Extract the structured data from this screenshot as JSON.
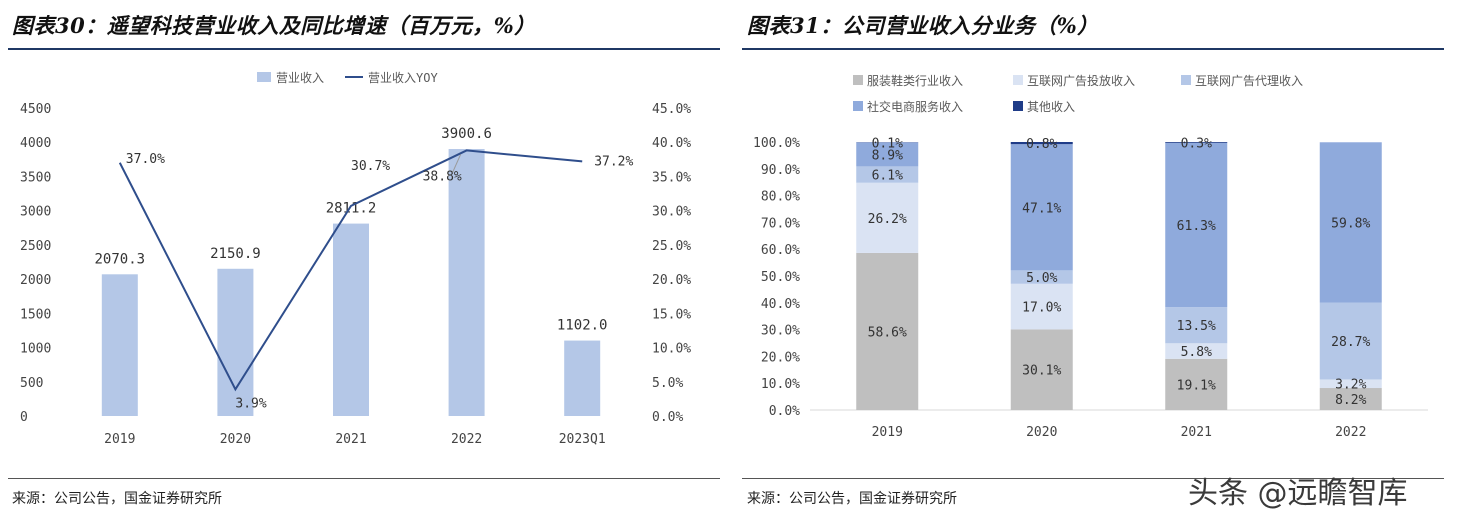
{
  "left": {
    "title": "图表30：遥望科技营业收入及同比增速（百万元，%）",
    "source": "来源：公司公告，国金证券研究所"
  },
  "right": {
    "title": "图表31：公司营业收入分业务（%）",
    "source": "来源：公司公告，国金证券研究所"
  },
  "watermark": "头条 @远瞻智库",
  "colors": {
    "bar": "#b4c7e7",
    "line": "#2f4e8c",
    "seg_apparel": "#bfbfbf",
    "seg_ad_delivery": "#dae3f3",
    "seg_ad_agency": "#b4c7e7",
    "seg_social_ecommerce": "#8faadc",
    "seg_other": "#1f3c88",
    "rule": "#1f3864"
  },
  "chart_data": [
    {
      "type": "bar",
      "categories": [
        "2019",
        "2020",
        "2021",
        "2022",
        "2023Q1"
      ],
      "series": [
        {
          "name": "营业收入",
          "kind": "bar",
          "axis": "left",
          "values": [
            2070.3,
            2150.9,
            2811.2,
            3900.6,
            1102.0
          ],
          "labels": [
            "2070.3",
            "2150.9",
            "2811.2",
            "3900.6",
            "1102.0"
          ]
        },
        {
          "name": "营业收入YOY",
          "kind": "line",
          "axis": "right",
          "values": [
            37.0,
            3.9,
            30.7,
            38.8,
            37.2
          ],
          "labels": [
            "37.0%",
            "3.9%",
            "30.7%",
            "38.8%",
            "37.2%"
          ]
        }
      ],
      "y_left": {
        "ylim": [
          0,
          4500
        ],
        "ticks": [
          "0",
          "500",
          "1000",
          "1500",
          "2000",
          "2500",
          "3000",
          "3500",
          "4000",
          "4500"
        ]
      },
      "y_right": {
        "ylim": [
          0,
          45
        ],
        "ticks": [
          "0.0%",
          "5.0%",
          "10.0%",
          "15.0%",
          "20.0%",
          "25.0%",
          "30.0%",
          "35.0%",
          "40.0%",
          "45.0%"
        ]
      },
      "legend": "top-center",
      "grid": false
    },
    {
      "type": "bar",
      "stacked": true,
      "categories": [
        "2019",
        "2020",
        "2021",
        "2022"
      ],
      "series": [
        {
          "name": "服装鞋类行业收入",
          "values": [
            58.6,
            30.1,
            19.1,
            8.2
          ],
          "labels": [
            "58.6%",
            "30.1%",
            "19.1%",
            "8.2%"
          ]
        },
        {
          "name": "互联网广告投放收入",
          "values": [
            26.2,
            17.0,
            5.8,
            3.2
          ],
          "labels": [
            "26.2%",
            "17.0%",
            "5.8%",
            "3.2%"
          ]
        },
        {
          "name": "互联网广告代理收入",
          "values": [
            6.1,
            5.0,
            13.5,
            28.7
          ],
          "labels": [
            "6.1%",
            "5.0%",
            "13.5%",
            "28.7%"
          ]
        },
        {
          "name": "社交电商服务收入",
          "values": [
            8.9,
            47.1,
            61.3,
            59.8
          ],
          "labels": [
            "8.9%",
            "47.1%",
            "61.3%",
            "59.8%"
          ]
        },
        {
          "name": "其他收入",
          "values": [
            0.1,
            0.8,
            0.3,
            0.0
          ],
          "labels": [
            "0.1%",
            "0.8%",
            "0.3%",
            ""
          ]
        }
      ],
      "ylim": [
        0,
        100
      ],
      "ticks": [
        "0.0%",
        "10.0%",
        "20.0%",
        "30.0%",
        "40.0%",
        "50.0%",
        "60.0%",
        "70.0%",
        "80.0%",
        "90.0%",
        "100.0%"
      ],
      "legend": "top",
      "grid": false
    }
  ]
}
